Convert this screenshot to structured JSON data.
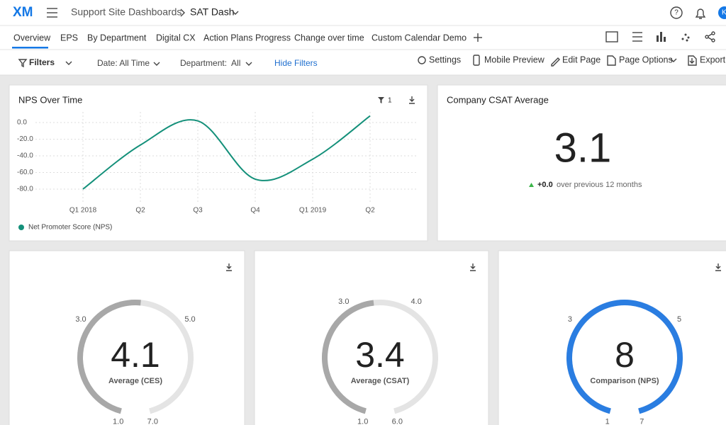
{
  "header": {
    "logo": "XM",
    "breadcrumb": [
      "Support Site Dashboards",
      "SAT Dash"
    ],
    "avatar": "K"
  },
  "tabs": [
    "Overview",
    "EPS",
    "By Department",
    "Digital CX",
    "Action Plans Progress",
    "Change over time",
    "Custom Calendar Demo"
  ],
  "filters": {
    "label": "Filters",
    "items": [
      "Date: All Time",
      "Department:  All"
    ],
    "hide": "Hide Filters"
  },
  "toolbar": [
    "Settings",
    "Mobile Preview",
    "Edit Page",
    "Page Options",
    "Export"
  ],
  "nps_widget": {
    "title": "NPS Over Time",
    "filter_count": 1,
    "chart_data": {
      "type": "line",
      "categories": [
        "Q1 2018",
        "Q2",
        "Q3",
        "Q4",
        "Q1 2019",
        "Q2"
      ],
      "series": [
        {
          "name": "Net Promoter Score (NPS)",
          "color": "#14907a",
          "values": [
            -80,
            -27,
            2,
            -68,
            -44,
            8
          ]
        }
      ],
      "ylim": [
        -90,
        10
      ],
      "yticks": [
        {
          "value": 0,
          "label": "0.0"
        },
        {
          "value": -20,
          "label": "-20.0"
        },
        {
          "value": -40,
          "label": "-40.0"
        },
        {
          "value": -60,
          "label": "-60.0"
        },
        {
          "value": -80,
          "label": "-80.0"
        }
      ],
      "grid": true
    }
  },
  "csat_widget": {
    "title": "Company CSAT Average",
    "value": 3.1,
    "change": "+0.0",
    "change_text": "over previous 12 months"
  },
  "gauges": [
    {
      "value": 4.1,
      "label": "Average (CES)",
      "range": [
        1,
        7
      ],
      "color": "#a8a8a8",
      "ticks": [
        {
          "value": 1,
          "label": "1.0"
        },
        {
          "value": 3,
          "label": "3.0"
        },
        {
          "value": 5,
          "label": "5.0"
        },
        {
          "value": 7,
          "label": "7.0"
        }
      ]
    },
    {
      "value": 3.4,
      "label": "Average (CSAT)",
      "range": [
        1,
        6
      ],
      "color": "#a8a8a8",
      "ticks": [
        {
          "value": 1,
          "label": "1.0"
        },
        {
          "value": 3,
          "label": "3.0"
        },
        {
          "value": 4,
          "label": "4.0"
        },
        {
          "value": 6,
          "label": "6.0"
        }
      ]
    },
    {
      "value": 8,
      "label": "Comparison (NPS)",
      "range": [
        1,
        7
      ],
      "color": "#2a7de1",
      "ticks": [
        1,
        3,
        5,
        7
      ]
    }
  ]
}
